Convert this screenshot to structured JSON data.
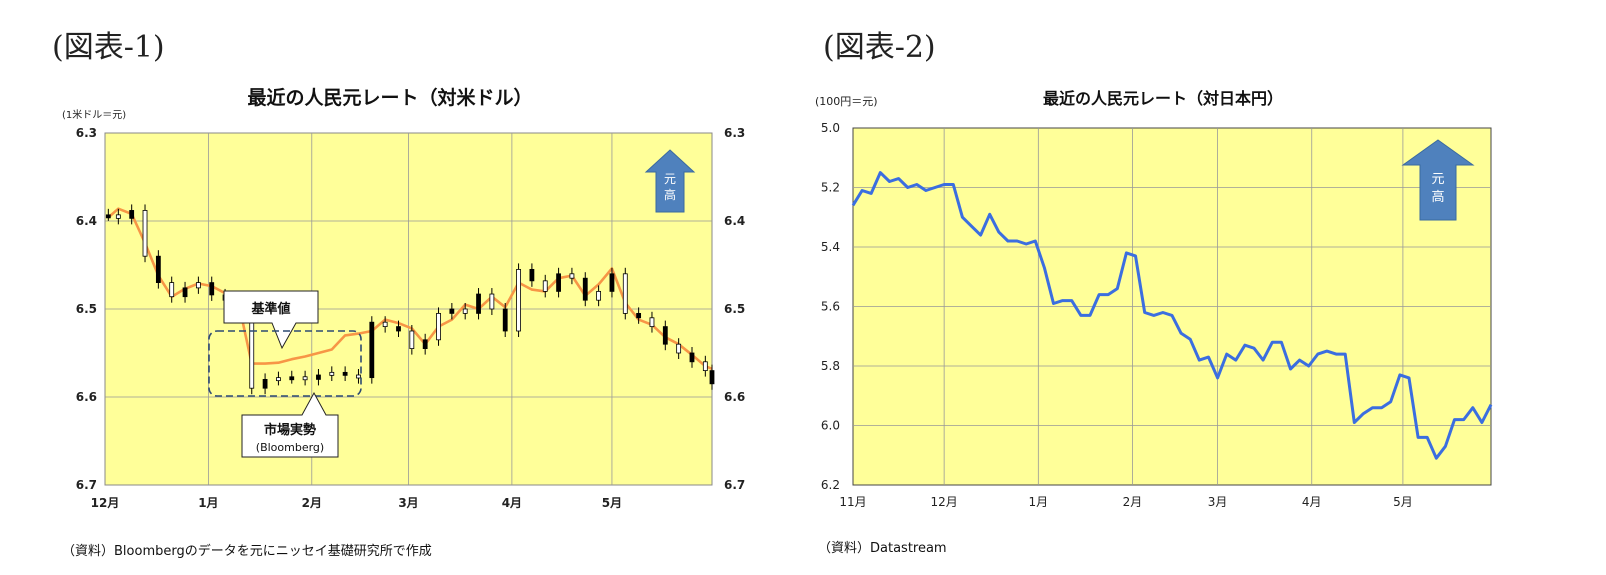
{
  "figure1": {
    "label": "(図表-1)",
    "source": "（資料）Bloombergのデータを元にニッセイ基礎研究所で作成",
    "chart_data": {
      "type": "line",
      "title": "最近の人民元レート（対米ドル）",
      "unit_label": "(1米ドル＝元)",
      "ylim": [
        6.3,
        6.7
      ],
      "y_inverted": true,
      "yticks": [
        "6.3",
        "6.4",
        "6.5",
        "6.6",
        "6.7"
      ],
      "xticks": [
        "12月",
        "1月",
        "2月",
        "3月",
        "4月",
        "5月"
      ],
      "grid": true,
      "plot_background": "#ffff99",
      "arrow_label": "元\n高",
      "arrow_color": "#4f81bd",
      "callouts": {
        "fix": "基準値",
        "market": "市場実勢",
        "market_sub": "(Bloomberg)"
      },
      "series": [
        {
          "name": "基準値",
          "color": "#f79646",
          "x": [
            1,
            4,
            8,
            12,
            16,
            20,
            24,
            28,
            32,
            36,
            40,
            44,
            48,
            52,
            56,
            60,
            64,
            68,
            72,
            76,
            80,
            84,
            88,
            92,
            96,
            100,
            104,
            108,
            112,
            116,
            120,
            124,
            128,
            132,
            136,
            140,
            144,
            148,
            152,
            156,
            160,
            164,
            168,
            172,
            176,
            180,
            182
          ],
          "values": [
            6.396,
            6.386,
            6.392,
            6.425,
            6.462,
            6.486,
            6.477,
            6.471,
            6.474,
            6.482,
            6.492,
            6.562,
            6.562,
            6.561,
            6.557,
            6.554,
            6.55,
            6.546,
            6.53,
            6.528,
            6.525,
            6.512,
            6.516,
            6.522,
            6.54,
            6.52,
            6.512,
            6.495,
            6.5,
            6.486,
            6.498,
            6.47,
            6.478,
            6.48,
            6.465,
            6.462,
            6.485,
            6.472,
            6.454,
            6.493,
            6.512,
            6.518,
            6.532,
            6.54,
            6.552,
            6.565,
            6.568
          ]
        },
        {
          "name": "市場実勢",
          "color": "#000000",
          "x": [
            1,
            4,
            8,
            12,
            16,
            20,
            24,
            28,
            32,
            36,
            40,
            44,
            48,
            52,
            56,
            60,
            64,
            68,
            72,
            76,
            80,
            84,
            88,
            92,
            96,
            100,
            104,
            108,
            112,
            116,
            120,
            124,
            128,
            132,
            136,
            140,
            144,
            148,
            152,
            156,
            160,
            164,
            168,
            172,
            176,
            180,
            182
          ],
          "values": [
            6.393,
            6.397,
            6.388,
            6.44,
            6.47,
            6.486,
            6.476,
            6.47,
            6.484,
            6.49,
            6.498,
            6.59,
            6.58,
            6.578,
            6.577,
            6.58,
            6.575,
            6.572,
            6.575,
            6.578,
            6.515,
            6.52,
            6.525,
            6.545,
            6.535,
            6.505,
            6.5,
            6.505,
            6.483,
            6.5,
            6.525,
            6.455,
            6.468,
            6.48,
            6.46,
            6.465,
            6.49,
            6.48,
            6.46,
            6.505,
            6.51,
            6.52,
            6.54,
            6.55,
            6.56,
            6.57,
            6.585
          ]
        }
      ]
    }
  },
  "figure2": {
    "label": "(図表-2)",
    "source": "（資料）Datastream",
    "chart_data": {
      "type": "line",
      "title": "最近の人民元レート（対日本円）",
      "unit_label": "(100円＝元)",
      "ylim": [
        5.0,
        6.2
      ],
      "y_inverted": true,
      "yticks": [
        "5.0",
        "5.2",
        "5.4",
        "5.6",
        "5.8",
        "6.0",
        "6.2"
      ],
      "xticks": [
        "11月",
        "12月",
        "1月",
        "2月",
        "3月",
        "4月",
        "5月"
      ],
      "grid": true,
      "plot_background": "#ffff99",
      "arrow_label": "元\n高",
      "arrow_color": "#4f81bd",
      "series": [
        {
          "color": "#3b6ee0",
          "x": [
            0,
            3,
            6,
            9,
            12,
            15,
            18,
            21,
            24,
            27,
            30,
            33,
            36,
            39,
            42,
            45,
            48,
            51,
            54,
            57,
            60,
            63,
            66,
            69,
            72,
            75,
            78,
            81,
            84,
            87,
            90,
            93,
            96,
            99,
            102,
            105,
            108,
            111,
            114,
            117,
            120,
            123,
            126,
            129,
            132,
            135,
            138,
            141,
            144,
            147,
            150,
            153,
            156,
            159,
            162,
            165,
            168,
            171,
            174,
            177,
            180,
            183,
            186,
            189,
            192,
            195,
            198,
            201,
            204,
            207,
            210
          ],
          "values": [
            5.26,
            5.21,
            5.22,
            5.15,
            5.18,
            5.17,
            5.2,
            5.19,
            5.21,
            5.2,
            5.19,
            5.19,
            5.3,
            5.33,
            5.36,
            5.29,
            5.35,
            5.38,
            5.38,
            5.39,
            5.38,
            5.47,
            5.59,
            5.58,
            5.58,
            5.63,
            5.63,
            5.56,
            5.56,
            5.54,
            5.42,
            5.43,
            5.62,
            5.63,
            5.62,
            5.63,
            5.69,
            5.71,
            5.78,
            5.77,
            5.84,
            5.76,
            5.78,
            5.73,
            5.74,
            5.78,
            5.72,
            5.72,
            5.81,
            5.78,
            5.8,
            5.76,
            5.75,
            5.76,
            5.76,
            5.99,
            5.96,
            5.94,
            5.94,
            5.92,
            5.83,
            5.84,
            6.04,
            6.04,
            6.11,
            6.07,
            5.98,
            5.98,
            5.94,
            5.99,
            5.93
          ]
        }
      ]
    }
  }
}
